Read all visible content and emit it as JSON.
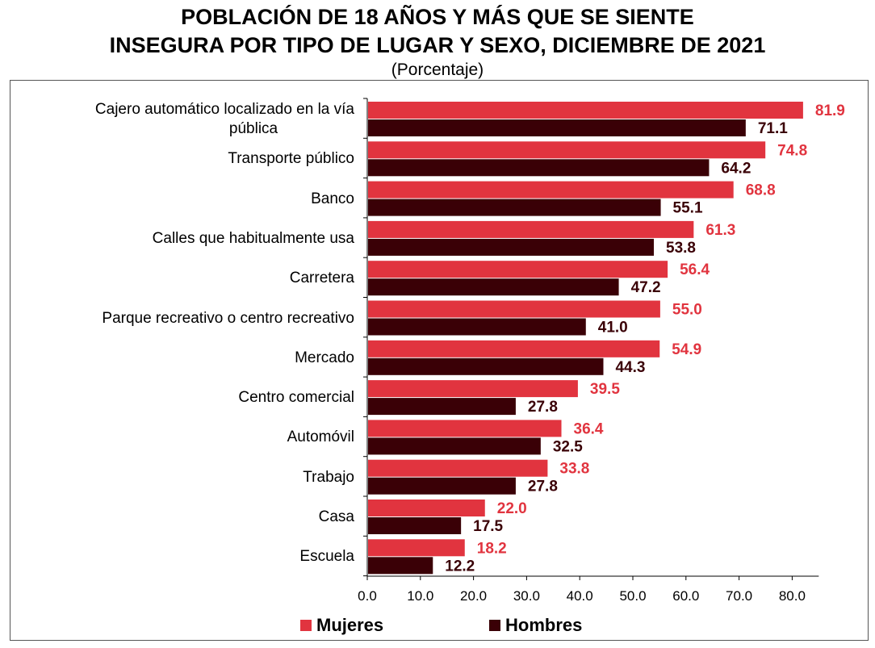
{
  "title_line1": "POBLACIÓN DE 18 AÑOS Y MÁS QUE SE SIENTE",
  "title_line2": "INSEGURA POR TIPO DE LUGAR Y SEXO, DICIEMBRE DE 2021",
  "subtitle": "(Porcentaje)",
  "colors": {
    "mujeres": "#e1343f",
    "hombres": "#3a0006"
  },
  "legend": {
    "mujeres": "Mujeres",
    "hombres": "Hombres"
  },
  "chart_data": {
    "type": "bar",
    "orientation": "horizontal",
    "categories": [
      "Cajero automático localizado en la vía\npública",
      "Transporte público",
      "Banco",
      "Calles que habitualmente usa",
      "Carretera",
      "Parque recreativo o centro recreativo",
      "Mercado",
      "Centro comercial",
      "Automóvil",
      "Trabajo",
      "Casa",
      "Escuela"
    ],
    "series": [
      {
        "name": "Mujeres",
        "values": [
          81.9,
          74.8,
          68.8,
          61.3,
          56.4,
          55.0,
          54.9,
          39.5,
          36.4,
          33.8,
          22.0,
          18.2
        ],
        "labels": [
          "81.9",
          "74.8",
          "68.8",
          "61.3",
          "56.4",
          "55.0",
          "54.9",
          "39.5",
          "36.4",
          "33.8",
          "22.0",
          "18.2"
        ]
      },
      {
        "name": "Hombres",
        "values": [
          71.1,
          64.2,
          55.1,
          53.8,
          47.2,
          41.0,
          44.3,
          27.8,
          32.5,
          27.8,
          17.5,
          12.2
        ],
        "labels": [
          "71.1",
          "64.2",
          "55.1",
          "53.8",
          "47.2",
          "41.0",
          "44.3",
          "27.8",
          "32.5",
          "27.8",
          "17.5",
          "12.2"
        ]
      }
    ],
    "x_ticks": [
      "0.0",
      "10.0",
      "20.0",
      "30.0",
      "40.0",
      "50.0",
      "60.0",
      "70.0",
      "80.0"
    ],
    "xlim": [
      0,
      85
    ],
    "legend_position": "bottom"
  }
}
